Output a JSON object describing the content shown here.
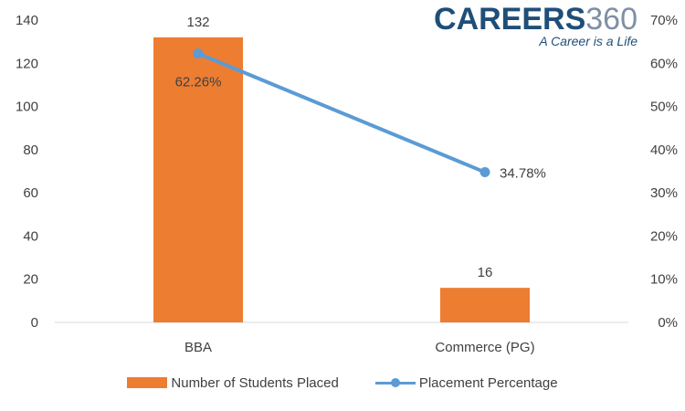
{
  "logo": {
    "brand": "CAREERS",
    "number": "360",
    "tagline": "A Career is a Life"
  },
  "chart_data": {
    "type": "bar",
    "categories": [
      "BBA",
      "Commerce (PG)"
    ],
    "series": [
      {
        "name": "Number of Students Placed",
        "kind": "bar",
        "axis": "left",
        "values": [
          132,
          16
        ],
        "labels": [
          "132",
          "16"
        ],
        "color": "#ed7d31"
      },
      {
        "name": "Placement Percentage",
        "kind": "line",
        "axis": "right",
        "values": [
          62.26,
          34.78
        ],
        "labels": [
          "62.26%",
          "34.78%"
        ],
        "color": "#5b9bd5"
      }
    ],
    "y_left": {
      "ylim": [
        0,
        140
      ],
      "ticks": [
        "0",
        "20",
        "40",
        "60",
        "80",
        "100",
        "120",
        "140"
      ]
    },
    "y_right": {
      "ylim": [
        0,
        70
      ],
      "ticks": [
        "0%",
        "10%",
        "20%",
        "30%",
        "40%",
        "50%",
        "60%",
        "70%"
      ]
    },
    "grid": false,
    "legend": "bottom"
  }
}
